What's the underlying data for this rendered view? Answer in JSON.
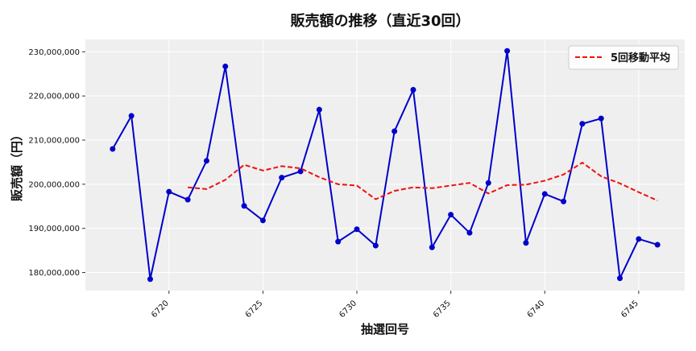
{
  "chart_data": {
    "type": "line",
    "title": "販売額の推移（直近30回）",
    "xlabel": "抽選回号",
    "ylabel": "販売額（円）",
    "x": [
      6717,
      6718,
      6719,
      6720,
      6721,
      6722,
      6723,
      6724,
      6725,
      6726,
      6727,
      6728,
      6729,
      6730,
      6731,
      6732,
      6733,
      6734,
      6735,
      6736,
      6737,
      6738,
      6739,
      6740,
      6741,
      6742,
      6743,
      6744,
      6745,
      6746
    ],
    "series": [
      {
        "name": "",
        "color": "#0000cc",
        "style": "solid-markers",
        "values": [
          208000000,
          215500000,
          178500000,
          198300000,
          196500000,
          205300000,
          226700000,
          195100000,
          191800000,
          201500000,
          202900000,
          216900000,
          187000000,
          189800000,
          186100000,
          212000000,
          221400000,
          185700000,
          193100000,
          189000000,
          200300000,
          230200000,
          186700000,
          197800000,
          196100000,
          213700000,
          214900000,
          178700000,
          187600000,
          186300000
        ]
      },
      {
        "name": "5回移動平均",
        "color": "#ee1111",
        "style": "dashed",
        "values": [
          null,
          null,
          null,
          null,
          199300000,
          198900000,
          201000000,
          204400000,
          203100000,
          204100000,
          203600000,
          201600000,
          200000000,
          199700000,
          196600000,
          198500000,
          199300000,
          199100000,
          199700000,
          200300000,
          197900000,
          199800000,
          199900000,
          200800000,
          202200000,
          204900000,
          201800000,
          200200000,
          198200000,
          196300000
        ]
      }
    ],
    "xticks": [
      6720,
      6725,
      6730,
      6735,
      6740,
      6745
    ],
    "yticks": [
      180000000,
      190000000,
      200000000,
      210000000,
      220000000,
      230000000
    ],
    "ytick_labels": [
      "180,000,000",
      "190,000,000",
      "200,000,000",
      "210,000,000",
      "220,000,000",
      "230,000,000"
    ],
    "xlim": [
      6715.55,
      6747.45
    ],
    "ylim": [
      175900000,
      232800000
    ],
    "grid": true,
    "legend_position": "top-right",
    "background_color": "#efefef"
  }
}
